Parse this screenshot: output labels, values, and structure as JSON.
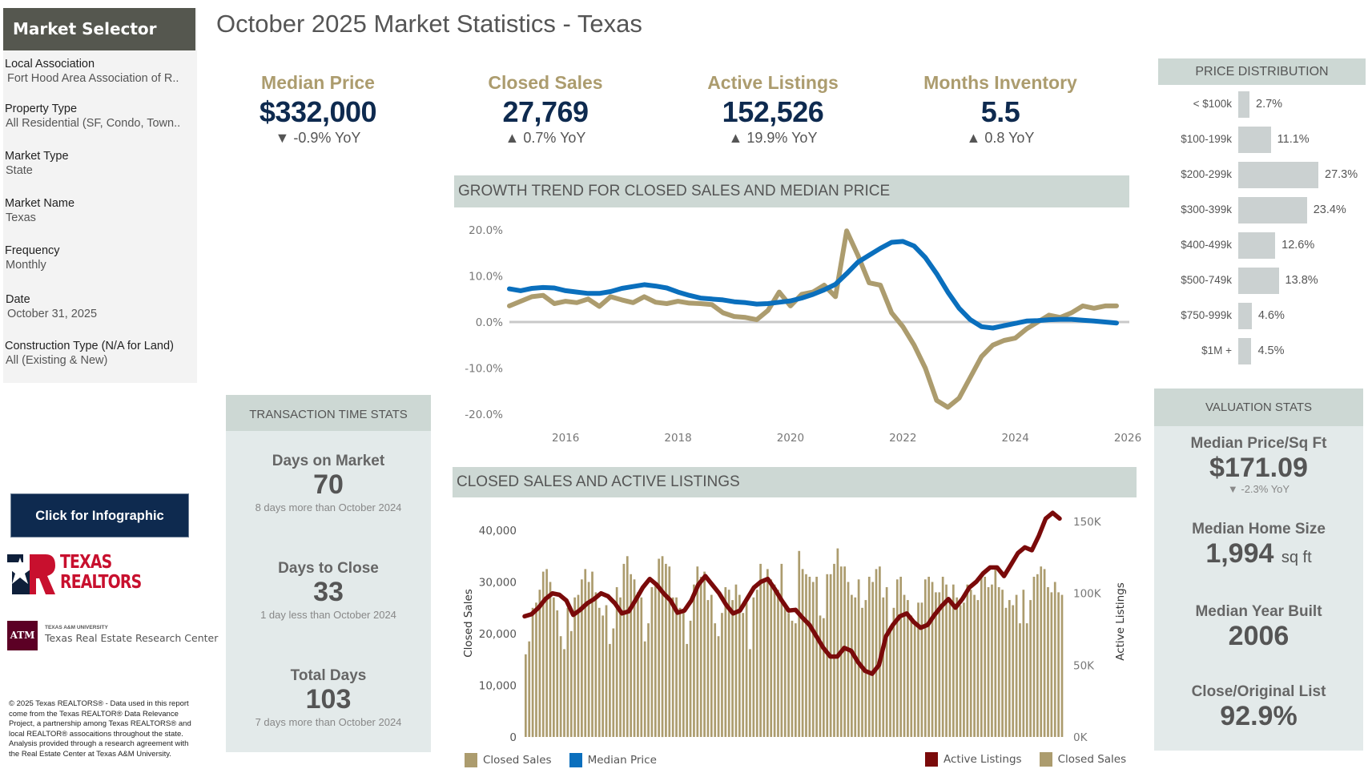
{
  "page_title": "October 2025 Market Statistics - Texas",
  "sidebar": {
    "header": "Market Selector",
    "filters": [
      {
        "label": "Local Association",
        "value": "Fort Hood Area Association of R.."
      },
      {
        "label": "Property Type",
        "value": "All Residential (SF, Condo, Town.."
      },
      {
        "label": "Market Type",
        "value": "State"
      },
      {
        "label": "Market Name",
        "value": "Texas"
      },
      {
        "label": "Frequency",
        "value": "Monthly"
      },
      {
        "label": "Date",
        "value": "October 31, 2025"
      },
      {
        "label": "Construction Type (N/A for Land)",
        "value": "All (Existing & New)"
      }
    ],
    "infographic_button": "Click for Infographic",
    "logo_texas_realtors": {
      "line1": "TEXAS",
      "line2": "REALTORS"
    },
    "logo_tamu": {
      "small": "TEXAS A&M UNIVERSITY",
      "main": "Texas Real Estate Research Center",
      "mark": "ATM"
    },
    "footer": "© 2025 Texas REALTORS® - Data used in this report come from the Texas REALTOR® Data Relevance Project, a partnership among Texas REALTORS® and local REALTOR® assocaitions throughout the state. Analysis provided through a research agreement with the Real Estate Center at Texas A&M University."
  },
  "kpis": [
    {
      "label": "Median Price",
      "value": "$332,000",
      "change": "▼ -0.9% YoY"
    },
    {
      "label": "Closed Sales",
      "value": "27,769",
      "change": "▲ 0.7% YoY"
    },
    {
      "label": "Active Listings",
      "value": "152,526",
      "change": "▲ 19.9% YoY"
    },
    {
      "label": "Months Inventory",
      "value": "5.5",
      "change": "▲ 0.8 YoY"
    }
  ],
  "transaction": {
    "header": "TRANSACTION TIME STATS",
    "stats": [
      {
        "label": "Days on Market",
        "value": "70",
        "note": "8 days more than October 2024"
      },
      {
        "label": "Days to Close",
        "value": "33",
        "note": "1 day less than October 2024"
      },
      {
        "label": "Total Days",
        "value": "103",
        "note": "7 days more than October 2024"
      }
    ]
  },
  "valuation": {
    "header": "VALUATION STATS",
    "stats": [
      {
        "label": "Median Price/Sq Ft",
        "value": "$171.09",
        "note": "▼ -2.3% YoY",
        "unit": ""
      },
      {
        "label": "Median Home Size",
        "value": "1,994",
        "note": "",
        "unit": "sq ft"
      },
      {
        "label": "Median Year Built",
        "value": "2006",
        "note": "",
        "unit": ""
      },
      {
        "label": "Close/Original List",
        "value": "92.9%",
        "note": "",
        "unit": ""
      }
    ]
  },
  "colors": {
    "gold": "#ac9c6e",
    "navy": "#0e2a4f",
    "blue": "#0a6fbd",
    "maroon": "#7a0a0a",
    "panel": "#e3eaea",
    "header": "#cdd8d4"
  },
  "chart_data": [
    {
      "type": "bar",
      "title": "PRICE DISTRIBUTION",
      "categories": [
        "< $100k",
        "$100-199k",
        "$200-299k",
        "$300-399k",
        "$400-499k",
        "$500-749k",
        "$750-999k",
        "$1M +"
      ],
      "values": [
        2.7,
        11.1,
        27.3,
        23.4,
        12.6,
        13.8,
        4.6,
        4.5
      ],
      "labels": [
        "2.7%",
        "11.1%",
        "27.3%",
        "23.4%",
        "12.6%",
        "13.8%",
        "4.6%",
        "4.5%"
      ],
      "orientation": "horizontal"
    },
    {
      "type": "line",
      "title": "GROWTH TREND FOR CLOSED SALES AND MEDIAN PRICE",
      "xlabel": "",
      "ylabel": "",
      "xlim": [
        2015,
        2026
      ],
      "ylim": [
        -20,
        20
      ],
      "x_ticks": [
        "2016",
        "2018",
        "2020",
        "2022",
        "2024",
        "2026"
      ],
      "y_ticks": [
        "20.0%",
        "10.0%",
        "0.0%",
        "-10.0%",
        "-20.0%"
      ],
      "legend": [
        "Closed Sales",
        "Median Price"
      ],
      "legend_position": "bottom-left",
      "series": [
        {
          "name": "Closed Sales",
          "color": "#ac9c6e",
          "x": [
            2015.0,
            2015.2,
            2015.4,
            2015.6,
            2015.8,
            2016.0,
            2016.2,
            2016.4,
            2016.6,
            2016.8,
            2017.0,
            2017.2,
            2017.4,
            2017.6,
            2017.8,
            2018.0,
            2018.2,
            2018.4,
            2018.6,
            2018.8,
            2019.0,
            2019.2,
            2019.4,
            2019.6,
            2019.8,
            2020.0,
            2020.2,
            2020.4,
            2020.6,
            2020.8,
            2021.0,
            2021.2,
            2021.4,
            2021.6,
            2021.8,
            2022.0,
            2022.2,
            2022.4,
            2022.6,
            2022.8,
            2023.0,
            2023.2,
            2023.4,
            2023.6,
            2023.8,
            2024.0,
            2024.2,
            2024.4,
            2024.6,
            2024.8,
            2025.0,
            2025.2,
            2025.4,
            2025.6,
            2025.8
          ],
          "y": [
            3.5,
            4.5,
            5.5,
            5.8,
            4.0,
            4.5,
            4.2,
            5.0,
            3.4,
            5.5,
            4.8,
            4.2,
            5.5,
            4.3,
            4.0,
            4.5,
            4.1,
            4.0,
            3.8,
            2.0,
            1.2,
            1.0,
            0.5,
            2.5,
            6.5,
            3.5,
            6.0,
            6.5,
            8.0,
            5.5,
            19.8,
            14.5,
            8.5,
            8.0,
            2.0,
            -1.0,
            -5.0,
            -10.0,
            -17.0,
            -18.5,
            -16.5,
            -12.0,
            -7.5,
            -5.0,
            -4.0,
            -3.5,
            -1.5,
            0.0,
            1.5,
            1.0,
            2.0,
            3.5,
            3.0,
            3.5,
            3.5
          ]
        },
        {
          "name": "Median Price",
          "color": "#0a6fbd",
          "x": [
            2015.0,
            2015.2,
            2015.4,
            2015.6,
            2015.8,
            2016.0,
            2016.2,
            2016.4,
            2016.6,
            2016.8,
            2017.0,
            2017.2,
            2017.4,
            2017.6,
            2017.8,
            2018.0,
            2018.2,
            2018.4,
            2018.6,
            2018.8,
            2019.0,
            2019.2,
            2019.4,
            2019.6,
            2019.8,
            2020.0,
            2020.2,
            2020.4,
            2020.6,
            2020.8,
            2021.0,
            2021.2,
            2021.4,
            2021.6,
            2021.8,
            2022.0,
            2022.2,
            2022.4,
            2022.6,
            2022.8,
            2023.0,
            2023.2,
            2023.4,
            2023.6,
            2023.8,
            2024.0,
            2024.2,
            2024.4,
            2024.6,
            2024.8,
            2025.0,
            2025.2,
            2025.4,
            2025.6,
            2025.8
          ],
          "y": [
            7.2,
            6.8,
            7.3,
            7.5,
            7.4,
            6.8,
            6.5,
            6.2,
            6.2,
            6.6,
            7.3,
            7.7,
            8.1,
            7.8,
            7.4,
            6.5,
            5.8,
            5.2,
            5.0,
            4.8,
            4.4,
            4.2,
            3.9,
            4.0,
            4.3,
            4.6,
            5.2,
            6.0,
            7.0,
            8.2,
            10.5,
            13.0,
            14.5,
            16.0,
            17.3,
            17.5,
            16.5,
            14.0,
            10.5,
            6.5,
            3.0,
            0.5,
            -1.0,
            -1.3,
            -0.8,
            -0.3,
            0.2,
            0.3,
            0.5,
            0.6,
            0.6,
            0.4,
            0.2,
            0.0,
            -0.2
          ]
        }
      ]
    },
    {
      "type": "bar",
      "title": "CLOSED SALES AND ACTIVE LISTINGS",
      "ylabel": "Closed Sales",
      "ylabel_right": "Active Listings",
      "ylim": [
        0,
        40000
      ],
      "ylim_right": [
        0,
        150000
      ],
      "y_ticks": [
        "40,000",
        "30,000",
        "20,000",
        "10,000",
        "0"
      ],
      "y_ticks_right": [
        "150K",
        "100K",
        "50K",
        "0K"
      ],
      "legend": [
        "Active Listings",
        "Closed Sales"
      ],
      "legend_position": "bottom-right",
      "series": [
        {
          "name": "Closed Sales",
          "type": "bar",
          "color": "#ac9c6e",
          "values": [
            16000,
            18500,
            25000,
            26000,
            28500,
            32000,
            32500,
            30000,
            27000,
            24500,
            19500,
            17000,
            25000,
            20500,
            27000,
            27500,
            30500,
            32500,
            30000,
            32000,
            28000,
            25000,
            23500,
            25500,
            18000,
            21000,
            29000,
            27000,
            33500,
            35000,
            31500,
            30500,
            28000,
            27000,
            18500,
            22000,
            29000,
            30000,
            34500,
            35000,
            33500,
            33000,
            27000,
            27000,
            25000,
            24500,
            18000,
            22500,
            29500,
            33000,
            31000,
            32000,
            26500,
            27500,
            22000,
            19500,
            24000,
            29000,
            28500,
            26500,
            29500,
            27500,
            24000,
            26000,
            17000,
            27000,
            28500,
            33500,
            30500,
            32500,
            30500,
            29500,
            28500,
            33500,
            26000,
            24000,
            22500,
            22000,
            36000,
            32500,
            31500,
            31000,
            30000,
            31000,
            23500,
            23000,
            31500,
            31500,
            33500,
            36500,
            33000,
            33000,
            30000,
            27500,
            27000,
            30500,
            25000,
            26500,
            31000,
            30000,
            32500,
            33000,
            27000,
            29000,
            21500,
            25000,
            30500,
            31000,
            27500,
            26500,
            23500,
            22000,
            26000,
            26000,
            30500,
            31000,
            30000,
            28000,
            28000,
            31000,
            29500,
            26500,
            29500,
            27000,
            25500,
            26000,
            29500,
            28500,
            27500,
            26500,
            31500,
            31000,
            29000,
            29500,
            32500,
            29000,
            28500,
            25000,
            26500,
            25500,
            27500,
            22000,
            28500,
            22000,
            26500,
            31000,
            31500,
            33000,
            32500,
            29000,
            28000,
            30000,
            28000,
            27500
          ]
        },
        {
          "name": "Active Listings",
          "type": "line",
          "color": "#7a0a0a",
          "values": [
            84000,
            85500,
            90000,
            96000,
            100000,
            99000,
            95000,
            85000,
            88500,
            93000,
            96000,
            100000,
            98000,
            93000,
            86000,
            87500,
            95500,
            104000,
            110000,
            106000,
            100000,
            95000,
            86500,
            88000,
            95000,
            106000,
            112000,
            106000,
            100000,
            92000,
            86000,
            88000,
            96000,
            104000,
            108000,
            110000,
            103000,
            95000,
            88000,
            88500,
            83000,
            78000,
            70000,
            62000,
            56000,
            56000,
            62000,
            60000,
            52000,
            46000,
            44000,
            50000,
            70000,
            78000,
            84000,
            86000,
            80000,
            76000,
            78000,
            85000,
            91000,
            96000,
            90000,
            96000,
            104000,
            108000,
            114000,
            118000,
            118000,
            112000,
            120000,
            128000,
            132000,
            130000,
            140000,
            152000,
            156000,
            152000
          ]
        }
      ]
    }
  ]
}
